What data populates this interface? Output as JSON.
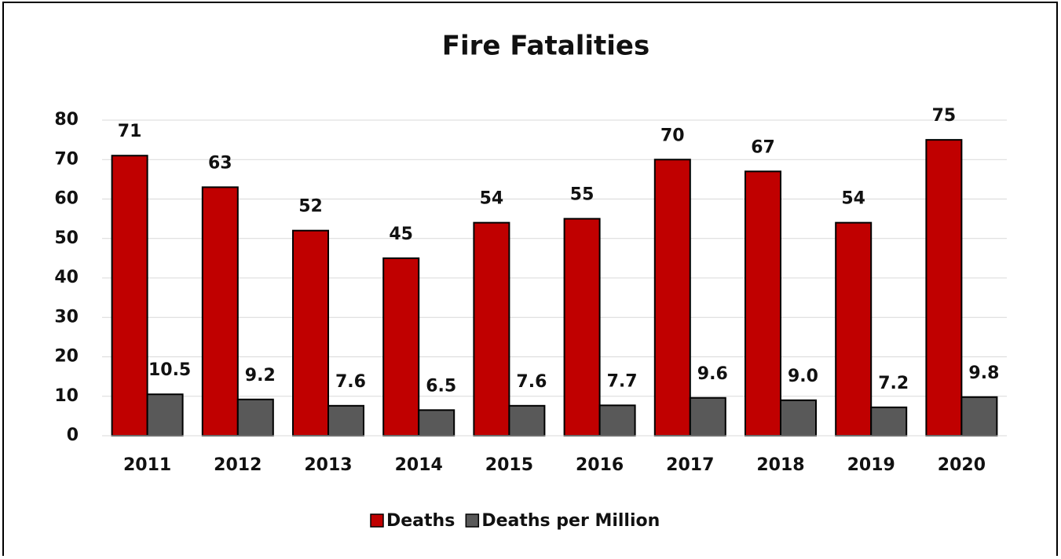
{
  "chart_data": {
    "type": "bar",
    "title": "Fire Fatalities",
    "categories": [
      "2011",
      "2012",
      "2013",
      "2014",
      "2015",
      "2016",
      "2017",
      "2018",
      "2019",
      "2020"
    ],
    "series": [
      {
        "name": "Deaths",
        "color": "#c00000",
        "values": [
          71,
          63,
          52,
          45,
          54,
          55,
          70,
          67,
          54,
          75
        ]
      },
      {
        "name": "Deaths per Million",
        "color": "#595959",
        "values": [
          10.5,
          9.2,
          7.6,
          6.5,
          7.6,
          7.7,
          9.6,
          9.0,
          7.2,
          9.8
        ],
        "value_labels": [
          "10.5",
          "9.2",
          "7.6",
          "6.5",
          "7.6",
          "7.7",
          "9.6",
          "9.0",
          "7.2",
          "9.8"
        ]
      }
    ],
    "ylim": [
      0,
      80
    ],
    "yticks": [
      0,
      10,
      20,
      30,
      40,
      50,
      60,
      70,
      80
    ],
    "grid": true,
    "legend": "bottom"
  }
}
